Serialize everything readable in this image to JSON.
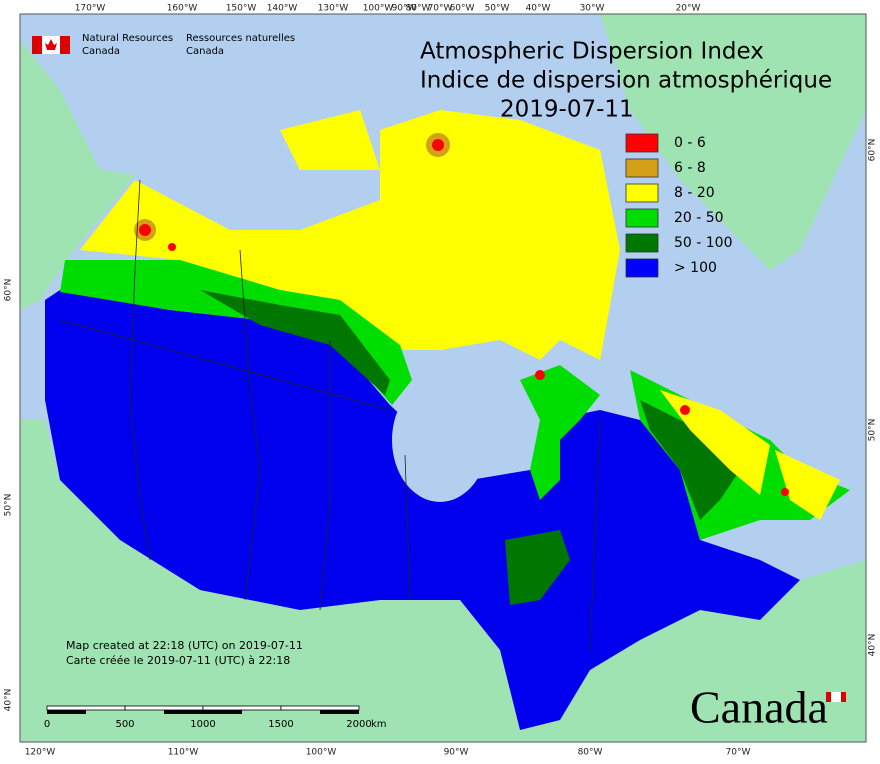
{
  "header": {
    "title": "Atmospheric Dispersion Index",
    "title_fr": "Indice de dispersion atmosphérique",
    "date": "2019-07-11"
  },
  "agency": {
    "en_line1": "Natural Resources",
    "en_line2": "Canada",
    "fr_line1": "Ressources naturelles",
    "fr_line2": "Canada"
  },
  "legend": {
    "items": [
      {
        "label": "0 - 6",
        "color": "#ff0000"
      },
      {
        "label": "6 - 8",
        "color": "#d4a017"
      },
      {
        "label": "8 - 20",
        "color": "#ffff00"
      },
      {
        "label": "20 - 50",
        "color": "#00dd00"
      },
      {
        "label": "50 - 100",
        "color": "#007700"
      },
      {
        "label": "> 100",
        "color": "#0000ff"
      }
    ]
  },
  "graticule": {
    "top": [
      "170°W",
      "160°W",
      "150°W",
      "140°W",
      "130°W",
      "100°W",
      "90°W",
      "80°W",
      "70°W",
      "60°W",
      "50°W",
      "40°W",
      "30°W",
      "20°W"
    ],
    "bottom": [
      "120°W",
      "110°W",
      "100°W",
      "90°W",
      "80°W",
      "70°W"
    ],
    "left": [
      "60°N",
      "50°N",
      "40°N"
    ],
    "right": [
      "60°N",
      "50°N",
      "40°N"
    ]
  },
  "credits": {
    "line1": "Map created at 22:18 (UTC) on 2019-07-11",
    "line2": "Carte créée le 2019-07-11 (UTC) à 22:18"
  },
  "scale": {
    "ticks": [
      "0",
      "500",
      "1000",
      "1500",
      "2000"
    ],
    "unit": "km"
  },
  "wordmark": "Canada"
}
